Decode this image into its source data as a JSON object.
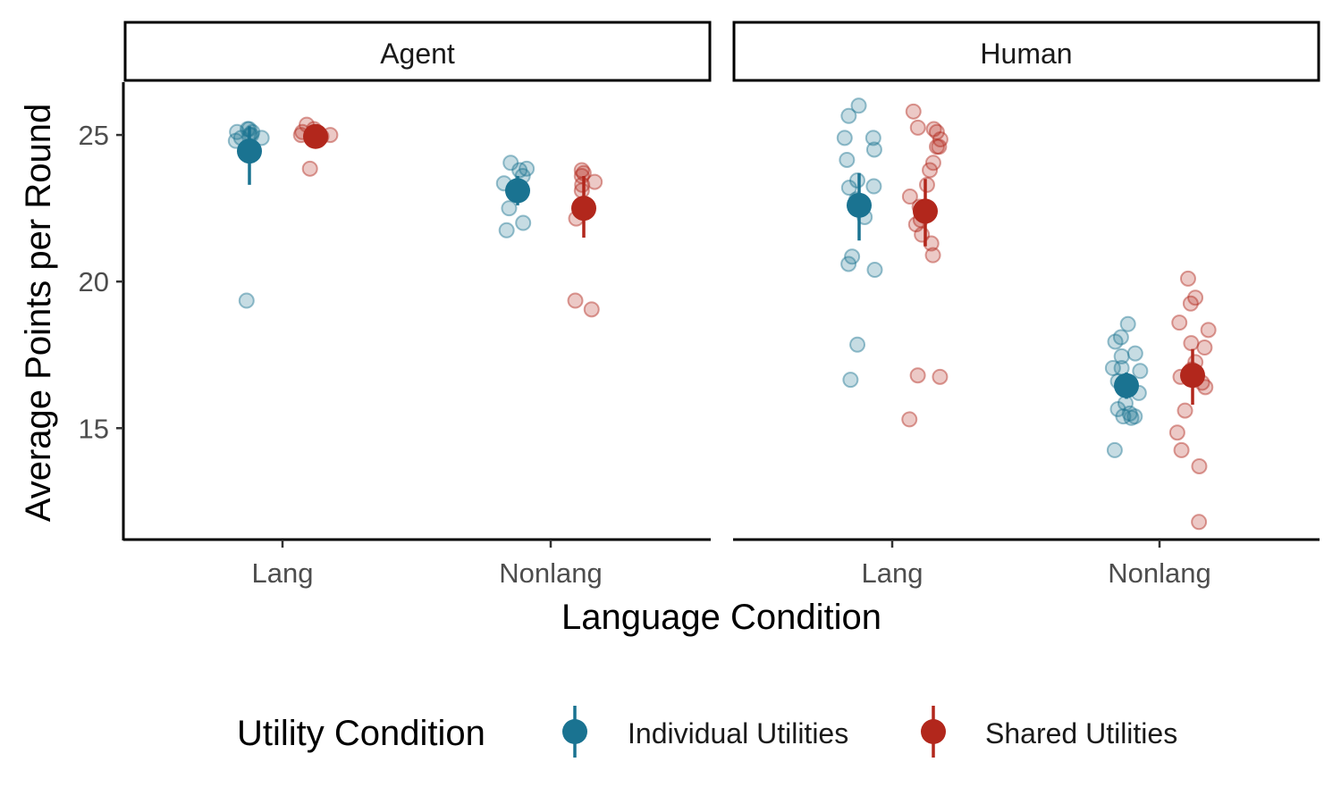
{
  "chart_data": {
    "type": "scatter",
    "description_free": true,
    "facets": [
      "Agent",
      "Human"
    ],
    "categories": [
      "Lang",
      "Nonlang"
    ],
    "xlabel": "Language Condition",
    "ylabel": "Average Points per Round",
    "ylim": [
      11.2,
      26.8
    ],
    "yticks": [
      15,
      20,
      25
    ],
    "legend": {
      "title": "Utility Condition",
      "placement": "bottom"
    },
    "series": [
      {
        "name": "Individual Utilities",
        "color": "#1a7391",
        "summary": {
          "Agent": {
            "Lang": {
              "mean": 24.45,
              "lo": 23.3,
              "hi": 25.3
            },
            "Nonlang": {
              "mean": 23.1,
              "lo": 22.6,
              "hi": 23.6
            }
          },
          "Human": {
            "Lang": {
              "mean": 22.6,
              "lo": 21.4,
              "hi": 23.7
            },
            "Nonlang": {
              "mean": 16.45,
              "lo": 16.0,
              "hi": 16.9
            }
          }
        },
        "points": {
          "Agent": {
            "Lang": [
              25.2,
              25.0,
              25.1,
              24.9,
              25.2,
              25.0,
              24.8,
              24.9,
              25.1,
              19.35
            ],
            "Nonlang": [
              24.05,
              23.85,
              23.6,
              23.35,
              23.0,
              22.5,
              22.0,
              21.75,
              23.8
            ]
          },
          "Human": {
            "Lang": [
              26.0,
              25.65,
              24.9,
              24.9,
              24.5,
              24.15,
              23.45,
              23.25,
              23.2,
              22.8,
              22.5,
              22.2,
              20.85,
              20.6,
              20.4,
              17.85,
              16.65
            ],
            "Nonlang": [
              18.55,
              18.1,
              17.95,
              17.55,
              17.45,
              17.05,
              17.05,
              16.95,
              16.6,
              16.2,
              15.85,
              15.65,
              15.5,
              15.4,
              15.4,
              15.35,
              14.25
            ]
          }
        }
      },
      {
        "name": "Shared Utilities",
        "color": "#b2271c",
        "summary": {
          "Agent": {
            "Lang": {
              "mean": 24.95,
              "lo": 24.6,
              "hi": 25.3
            },
            "Nonlang": {
              "mean": 22.5,
              "lo": 21.5,
              "hi": 23.6
            }
          },
          "Human": {
            "Lang": {
              "mean": 22.4,
              "lo": 21.2,
              "hi": 23.5
            },
            "Nonlang": {
              "mean": 16.8,
              "lo": 15.8,
              "hi": 17.7
            }
          }
        },
        "points": {
          "Agent": {
            "Lang": [
              25.35,
              25.2,
              25.1,
              25.0,
              25.0,
              24.95,
              24.9,
              25.0,
              23.85
            ],
            "Nonlang": [
              23.8,
              23.7,
              23.6,
              23.4,
              23.3,
              23.1,
              22.15,
              19.35,
              19.05
            ]
          },
          "Human": {
            "Lang": [
              25.8,
              25.25,
              25.2,
              25.1,
              24.85,
              24.6,
              24.6,
              24.05,
              23.8,
              23.3,
              22.9,
              22.55,
              22.1,
              21.95,
              21.6,
              21.3,
              20.9,
              16.8,
              16.75,
              15.3
            ],
            "Nonlang": [
              20.1,
              19.45,
              19.25,
              18.6,
              18.35,
              17.9,
              17.75,
              17.25,
              17.0,
              16.75,
              16.55,
              16.4,
              15.6,
              14.85,
              14.25,
              13.7,
              11.8
            ]
          }
        }
      }
    ]
  }
}
